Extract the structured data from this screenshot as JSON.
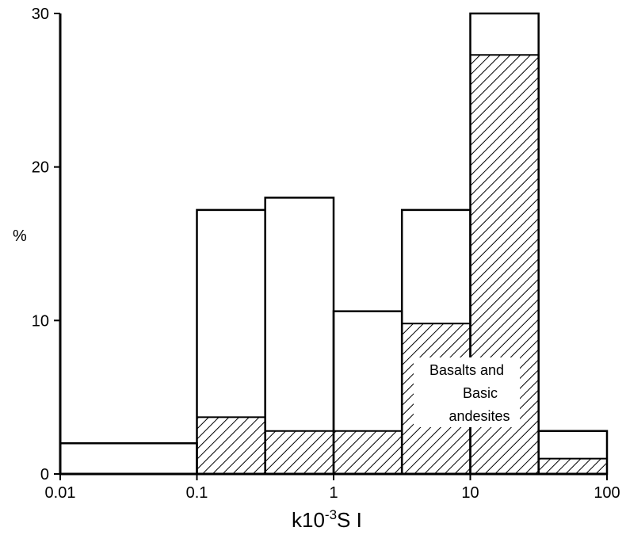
{
  "chart_data": {
    "type": "histogram",
    "xscale": "log",
    "xlim": [
      0.01,
      100
    ],
    "ylim": [
      0,
      30
    ],
    "xticks": [
      "0.01",
      "0.1",
      "1",
      "10",
      "100"
    ],
    "yticks": [
      "0",
      "10",
      "20",
      "30"
    ],
    "xlabel": {
      "base": "k10",
      "sup": "-3",
      "unit": "S I"
    },
    "ylabel": "%",
    "grid": false,
    "bins": [
      {
        "x0": 0.01,
        "x1": 0.1
      },
      {
        "x0": 0.1,
        "x1": 0.316
      },
      {
        "x0": 0.316,
        "x1": 1
      },
      {
        "x0": 1,
        "x1": 3.16
      },
      {
        "x0": 3.16,
        "x1": 10
      },
      {
        "x0": 10,
        "x1": 31.6
      },
      {
        "x0": 31.6,
        "x1": 100
      }
    ],
    "series": [
      {
        "name": "",
        "style": "outline",
        "values": [
          2,
          17.2,
          18,
          10.6,
          17.2,
          30,
          2.8
        ]
      },
      {
        "name": "Basalts and Basic andesites",
        "style": "hatched",
        "values": [
          0,
          3.7,
          2.8,
          2.8,
          9.8,
          27.3,
          1
        ]
      }
    ],
    "annotation": [
      "Basalts and",
      "Basic",
      "andesites"
    ]
  }
}
